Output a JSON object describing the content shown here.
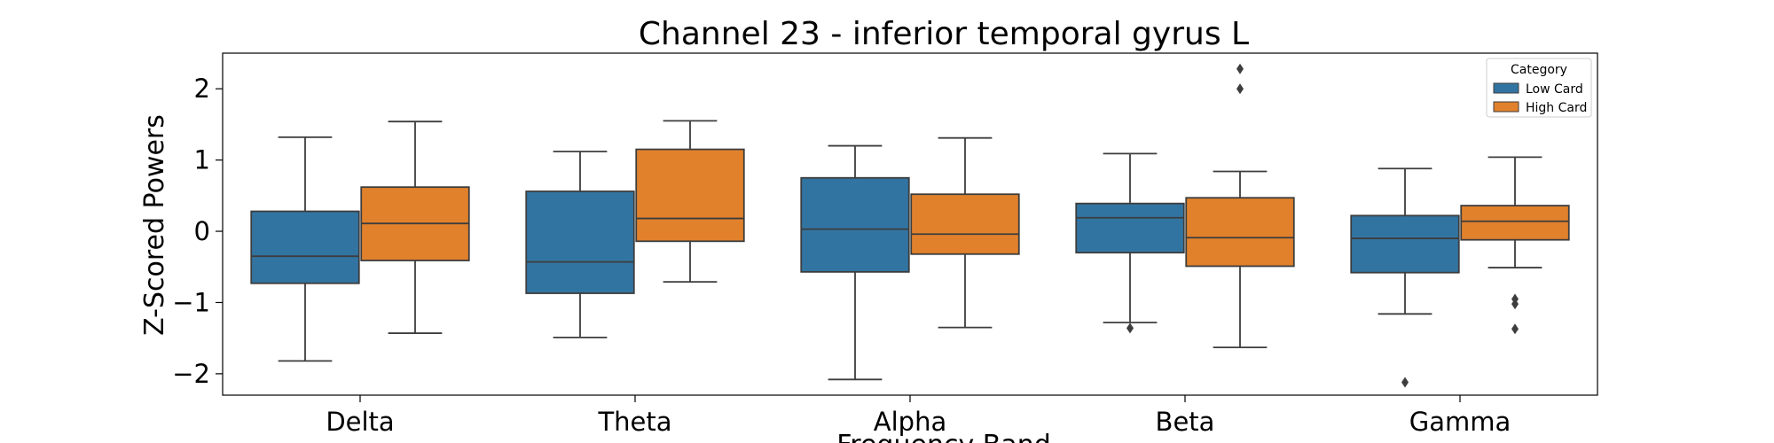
{
  "chart_data": {
    "type": "boxplot",
    "title": "Channel 23 - inferior temporal gyrus L",
    "xlabel": "Frequency Band",
    "ylabel": "Z-Scored Powers",
    "categories": [
      "Delta",
      "Theta",
      "Alpha",
      "Beta",
      "Gamma"
    ],
    "ylim": [
      -2.3,
      2.5
    ],
    "yticks": [
      {
        "value": 2,
        "label": "2"
      },
      {
        "value": 1,
        "label": "1"
      },
      {
        "value": 0,
        "label": "0"
      },
      {
        "value": -1,
        "label": "−1"
      },
      {
        "value": -2,
        "label": "−2"
      }
    ],
    "legend": {
      "title": "Category",
      "position": "top-right"
    },
    "series": [
      {
        "name": "Low Card",
        "color": "#3274a1",
        "boxes": [
          {
            "whisker_low": -1.82,
            "q1": -0.73,
            "median": -0.35,
            "q3": 0.28,
            "whisker_high": 1.32,
            "outliers": []
          },
          {
            "whisker_low": -1.49,
            "q1": -0.87,
            "median": -0.43,
            "q3": 0.56,
            "whisker_high": 1.12,
            "outliers": []
          },
          {
            "whisker_low": -2.08,
            "q1": -0.57,
            "median": 0.03,
            "q3": 0.75,
            "whisker_high": 1.2,
            "outliers": []
          },
          {
            "whisker_low": -1.28,
            "q1": -0.3,
            "median": 0.19,
            "q3": 0.39,
            "whisker_high": 1.09,
            "outliers": [
              -1.36
            ]
          },
          {
            "whisker_low": -1.16,
            "q1": -0.58,
            "median": -0.1,
            "q3": 0.22,
            "whisker_high": 0.88,
            "outliers": [
              -2.12
            ]
          }
        ]
      },
      {
        "name": "High Card",
        "color": "#e1812c",
        "boxes": [
          {
            "whisker_low": -1.43,
            "q1": -0.41,
            "median": 0.11,
            "q3": 0.62,
            "whisker_high": 1.54,
            "outliers": []
          },
          {
            "whisker_low": -0.71,
            "q1": -0.14,
            "median": 0.18,
            "q3": 1.15,
            "whisker_high": 1.55,
            "outliers": []
          },
          {
            "whisker_low": -1.35,
            "q1": -0.32,
            "median": -0.04,
            "q3": 0.52,
            "whisker_high": 1.31,
            "outliers": []
          },
          {
            "whisker_low": -1.63,
            "q1": -0.49,
            "median": -0.09,
            "q3": 0.47,
            "whisker_high": 0.84,
            "outliers": [
              2.0,
              2.28
            ]
          },
          {
            "whisker_low": -0.51,
            "q1": -0.12,
            "median": 0.14,
            "q3": 0.36,
            "whisker_high": 1.04,
            "outliers": [
              -0.95,
              -1.02,
              -1.37
            ]
          }
        ]
      }
    ]
  }
}
